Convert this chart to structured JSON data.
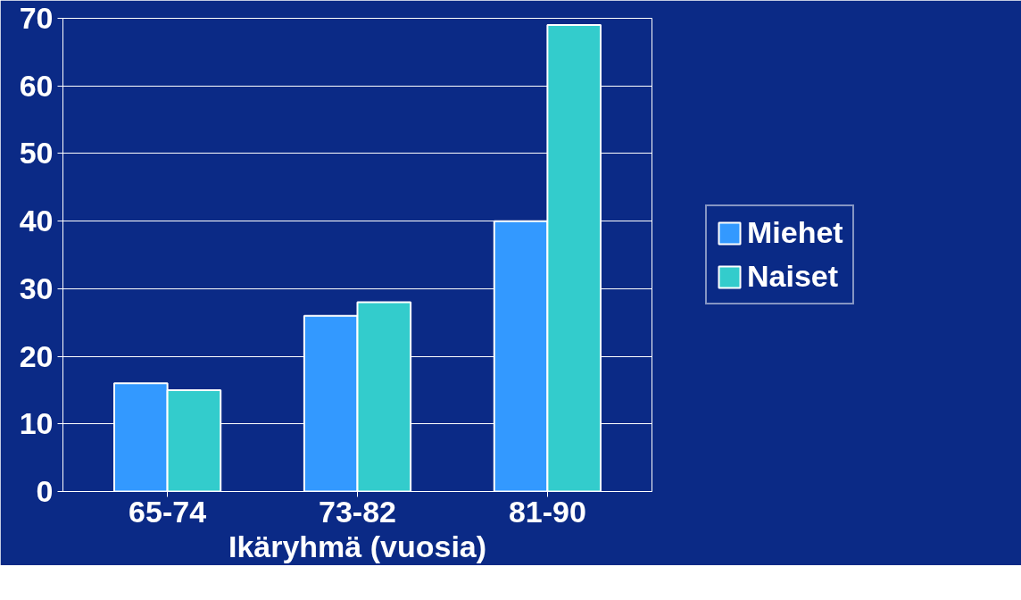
{
  "chart_data": {
    "type": "bar",
    "xlabel": "Ikäryhmä (vuosia)",
    "categories": [
      "65-74",
      "73-82",
      "81-90"
    ],
    "series": [
      {
        "name": "Miehet",
        "color": "#3399ff",
        "values": [
          16,
          26,
          40
        ]
      },
      {
        "name": "Naiset",
        "color": "#33cccc",
        "values": [
          15,
          28,
          69
        ]
      }
    ],
    "ylim": [
      0,
      70
    ],
    "yticks": [
      0,
      10,
      20,
      30,
      40,
      50,
      60,
      70
    ],
    "grid": "y",
    "legend": "right"
  }
}
